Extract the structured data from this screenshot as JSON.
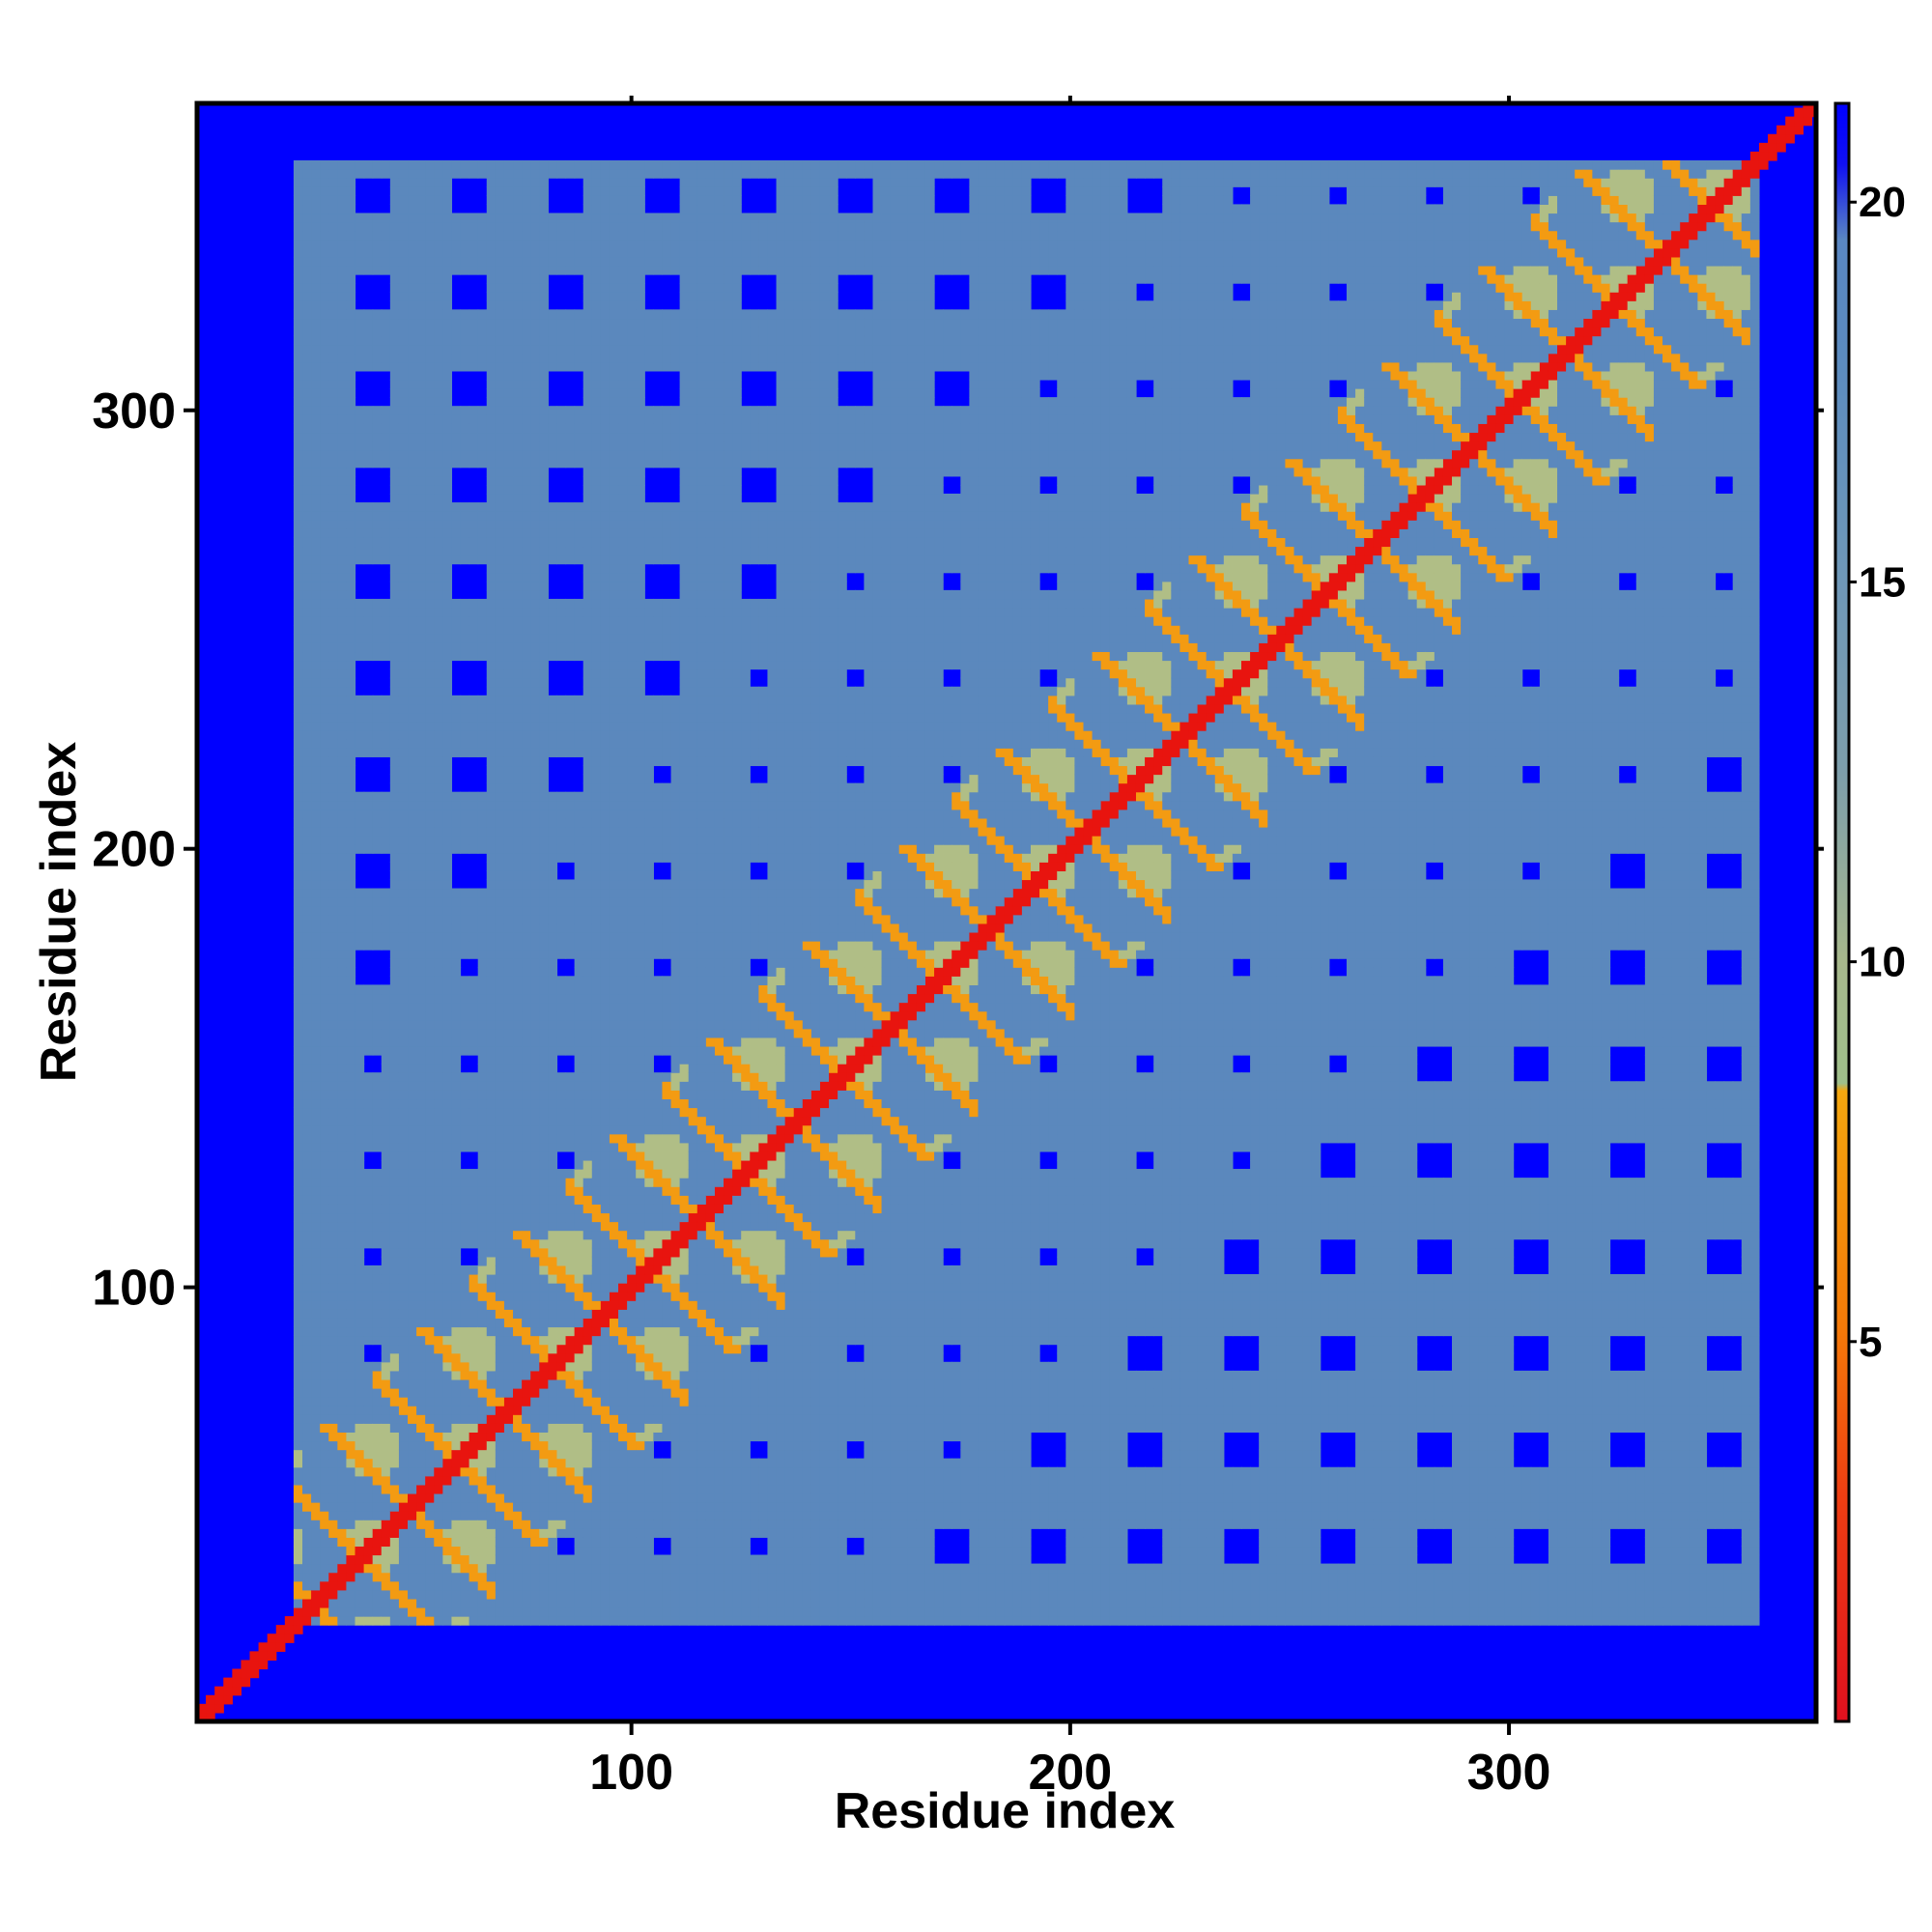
{
  "chart_data": {
    "type": "heatmap",
    "title": "",
    "xlabel": "Residue index",
    "ylabel": "Residue index",
    "xlim": [
      1,
      370
    ],
    "ylim": [
      1,
      370
    ],
    "x_ticks": [
      100,
      200,
      300
    ],
    "y_ticks": [
      100,
      200,
      300
    ],
    "x_tick_labels": [
      "100",
      "200",
      "300"
    ],
    "y_tick_labels": [
      "100",
      "200",
      "300"
    ],
    "colorbar": {
      "range": [
        0,
        21.3
      ],
      "ticks": [
        5,
        10,
        15,
        20
      ],
      "tick_labels": [
        "5",
        "10",
        "15",
        "20"
      ],
      "stops": [
        {
          "value": 0,
          "color": "#e0101e"
        },
        {
          "value": 3.0,
          "color": "#ee3f12"
        },
        {
          "value": 5.2,
          "color": "#f57a08"
        },
        {
          "value": 7.5,
          "color": "#f59a0c"
        },
        {
          "value": 8.3,
          "color": "#f5a80f"
        },
        {
          "value": 8.4,
          "color": "#9fbf8b"
        },
        {
          "value": 10,
          "color": "#a7b88c"
        },
        {
          "value": 12.5,
          "color": "#7d9eab"
        },
        {
          "value": 15,
          "color": "#6f98b8"
        },
        {
          "value": 18,
          "color": "#5b8bbf"
        },
        {
          "value": 19.5,
          "color": "#5a87c2"
        },
        {
          "value": 20.5,
          "color": "#1010f2"
        },
        {
          "value": 21.3,
          "color": "#0000ff"
        }
      ]
    },
    "grid": false,
    "legend": "colorbar-right",
    "colors": {
      "far": "#0000ff",
      "mid": "#5b88bd",
      "near": "#b0be86",
      "close": "#f39b12",
      "diagonal": "#e8140f"
    },
    "description_of_values": "Symmetric residue-residue distance map (distances in colorbar units); near-diagonal band of small distances with periodic helix-helix contact patches."
  }
}
